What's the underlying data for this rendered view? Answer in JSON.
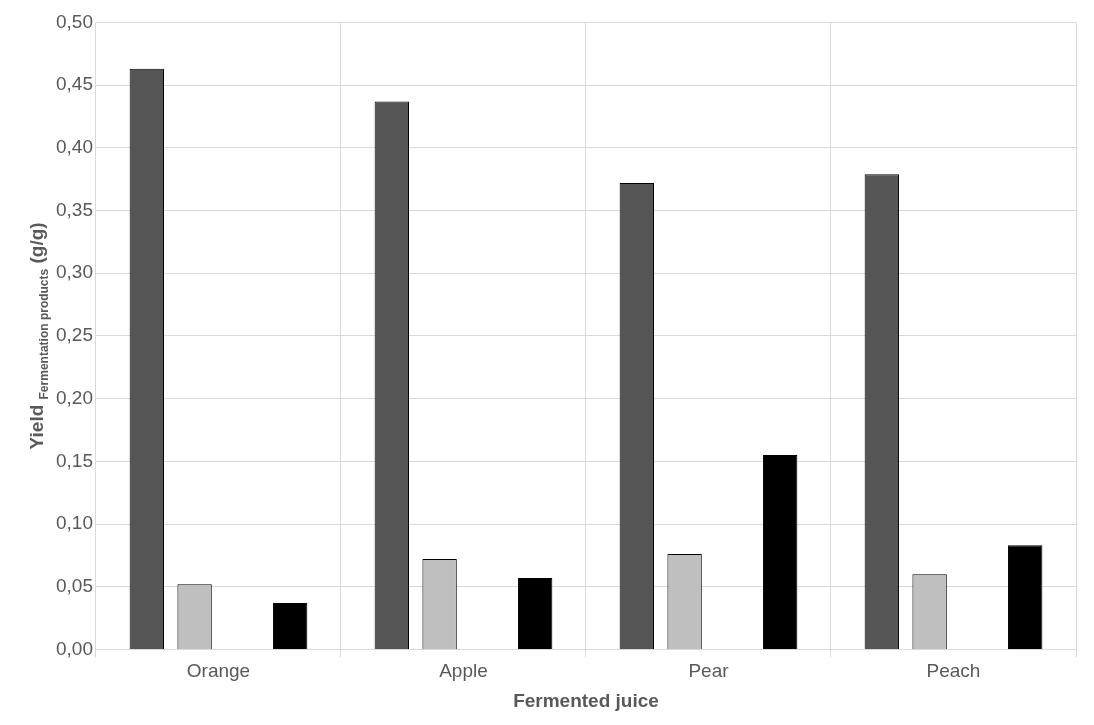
{
  "chart_data": {
    "type": "bar",
    "xlabel": "Fermented juice",
    "ylabel": "Yield $_{Fermentation products}$ (g/g)",
    "categories": [
      "Orange",
      "Apple",
      "Pear",
      "Peach"
    ],
    "series": [
      {
        "color": "#555555",
        "values": [
          0.463,
          0.437,
          0.372,
          0.379
        ]
      },
      {
        "color": "#bfbfbf",
        "values": [
          0.052,
          0.072,
          0.076,
          0.06
        ]
      },
      {
        "color": "#ffffff",
        "values": [
          null,
          null,
          null,
          null
        ]
      },
      {
        "color": "#000000",
        "values": [
          0.037,
          0.057,
          0.155,
          0.083
        ]
      }
    ],
    "ylim": [
      0,
      0.5
    ],
    "yticks": [
      {
        "value": 0,
        "label": "0,00"
      },
      {
        "value": 0.05,
        "label": "0,05"
      },
      {
        "value": 0.1,
        "label": "0,10"
      },
      {
        "value": 0.15,
        "label": "0,15"
      },
      {
        "value": 0.2,
        "label": "0,20"
      },
      {
        "value": 0.25,
        "label": "0,25"
      },
      {
        "value": 0.3,
        "label": "0,30"
      },
      {
        "value": 0.35,
        "label": "0,35"
      },
      {
        "value": 0.4,
        "label": "0,40"
      },
      {
        "value": 0.45,
        "label": "0,45"
      },
      {
        "value": 0.5,
        "label": "0,50"
      }
    ],
    "grid": true,
    "legend": false
  }
}
